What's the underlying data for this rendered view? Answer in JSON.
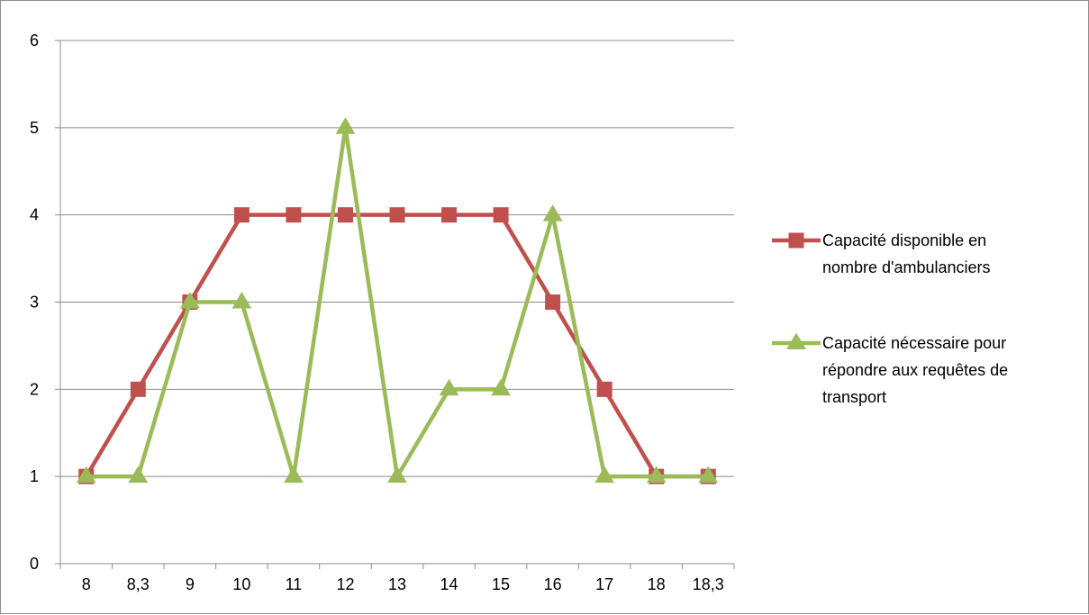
{
  "chart_data": {
    "type": "line",
    "title": "",
    "xlabel": "",
    "ylabel": "",
    "categories": [
      "8",
      "8,3",
      "9",
      "10",
      "11",
      "12",
      "13",
      "14",
      "15",
      "16",
      "17",
      "18",
      "18,3"
    ],
    "ylim": [
      0,
      6
    ],
    "yticks": [
      "0",
      "1",
      "2",
      "3",
      "4",
      "5",
      "6"
    ],
    "grid": "horizontal",
    "legend_position": "right",
    "series": [
      {
        "name": "Capacité disponible en nombre d'ambulanciers",
        "legend_lines": [
          "Capacité disponible en",
          "nombre d'ambulanciers"
        ],
        "marker": "square",
        "color": "#c0504d",
        "values": [
          1,
          2,
          3,
          4,
          4,
          4,
          4,
          4,
          4,
          3,
          2,
          1,
          1
        ]
      },
      {
        "name": "Capacité nécessaire pour répondre aux requêtes de transport",
        "legend_lines": [
          "Capacité nécessaire pour",
          "répondre aux requêtes de",
          "transport"
        ],
        "marker": "triangle",
        "color": "#9bbb59",
        "values": [
          1,
          1,
          3,
          3,
          1,
          5,
          1,
          2,
          2,
          4,
          1,
          1,
          1
        ]
      }
    ]
  }
}
